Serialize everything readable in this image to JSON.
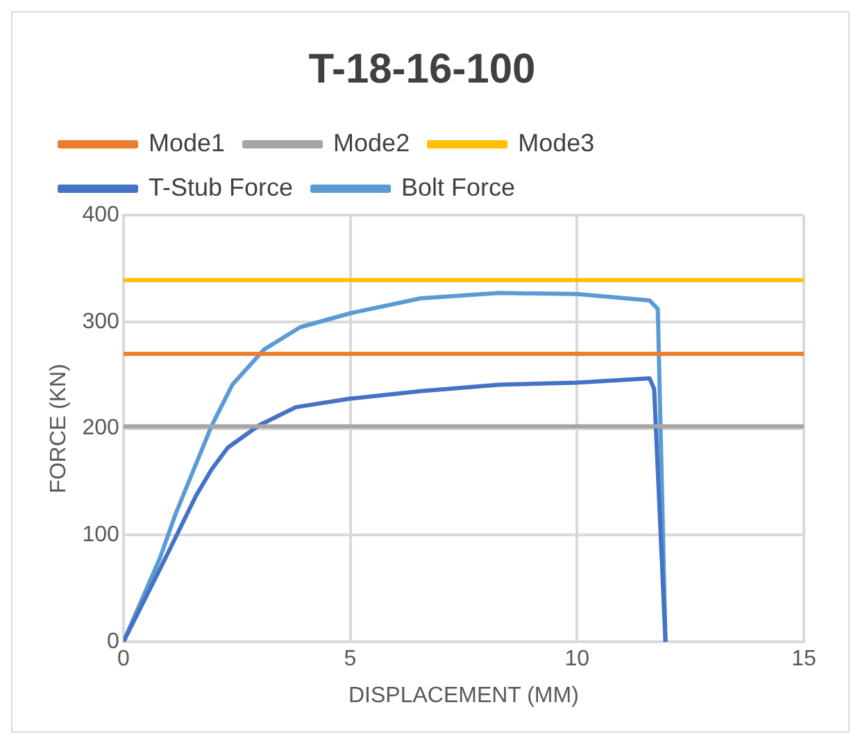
{
  "chart_data": {
    "type": "line",
    "title": "T-18-16-100",
    "xlabel": "DISPLACEMENT (MM)",
    "ylabel": "FORCE (KN)",
    "xlim": [
      0,
      15
    ],
    "xticks": [
      0,
      5,
      10,
      15
    ],
    "ylim": [
      0,
      400
    ],
    "yticks": [
      0,
      100,
      200,
      300,
      400
    ],
    "grid": true,
    "legend": "top",
    "marker": "none",
    "series": [
      {
        "name": "Mode1",
        "color": "#ed7d31",
        "x": [
          0,
          15
        ],
        "values": [
          270,
          270
        ]
      },
      {
        "name": "Mode2",
        "color": "#a5a5a5",
        "x": [
          0,
          15
        ],
        "values": [
          202,
          202
        ]
      },
      {
        "name": "Mode3",
        "color": "#ffc000",
        "x": [
          0,
          15
        ],
        "values": [
          339,
          339
        ]
      },
      {
        "name": "T-Stub Force",
        "color": "#4472c4",
        "x": [
          0,
          0.92,
          1.6,
          1.95,
          2.3,
          2.99,
          3.8,
          5,
          6.55,
          8.28,
          10,
          11.6,
          11.7,
          11.95
        ],
        "values": [
          0,
          78,
          137,
          162,
          182,
          203,
          220,
          228,
          235,
          241,
          243,
          247,
          237,
          0
        ]
      },
      {
        "name": "Bolt Force",
        "color": "#5b9bd5",
        "x": [
          0,
          0.8,
          1.15,
          1.95,
          2.4,
          3.1,
          3.9,
          5,
          6.55,
          8.28,
          10,
          11.6,
          11.78,
          11.95
        ],
        "values": [
          0,
          78,
          120,
          203,
          241,
          274,
          295,
          308,
          322,
          327,
          326,
          320,
          312,
          0
        ]
      }
    ]
  }
}
